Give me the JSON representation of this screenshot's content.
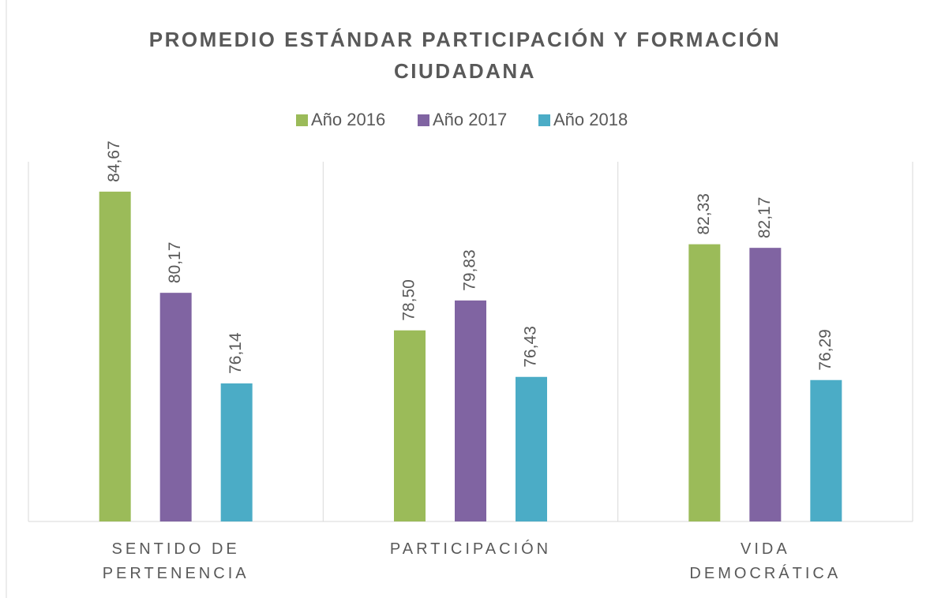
{
  "chart_data": {
    "type": "bar",
    "title": "PROMEDIO ESTÁNDAR PARTICIPACIÓN Y FORMACIÓN CIUDADANA",
    "categories": [
      "SENTIDO DE PERTENENCIA",
      "PARTICIPACIÓN",
      "VIDA DEMOCRÁTICA"
    ],
    "series": [
      {
        "name": "Año 2016",
        "color": "#9BBB59",
        "values": [
          84.67,
          78.5,
          82.33
        ],
        "value_labels": [
          "84,67",
          "78,50",
          "82,33"
        ]
      },
      {
        "name": "Año 2017",
        "color": "#8064A2",
        "values": [
          80.17,
          79.83,
          82.17
        ],
        "value_labels": [
          "80,17",
          "79,83",
          "82,17"
        ]
      },
      {
        "name": "Año 2018",
        "color": "#4BACC6",
        "values": [
          76.14,
          76.43,
          76.29
        ],
        "value_labels": [
          "76,14",
          "76,43",
          "76,29"
        ]
      }
    ],
    "ylim": [
      70,
      86
    ],
    "legend": "top"
  }
}
